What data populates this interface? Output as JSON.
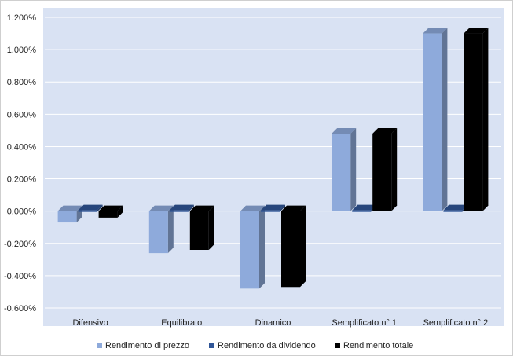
{
  "chart_data": {
    "type": "bar",
    "style": "3d-clustered-column",
    "categories": [
      "Difensivo",
      "Equilibrato",
      "Dinamico",
      "Semplificato n° 1",
      "Semplificato n° 2"
    ],
    "series": [
      {
        "name": "Rendimento di prezzo",
        "values": [
          -0.07,
          -0.26,
          -0.48,
          0.48,
          1.1
        ],
        "color": "#8eaadb"
      },
      {
        "name": "Rendimento da dividendo",
        "values": [
          0.0,
          0.0,
          0.0,
          0.0,
          0.0
        ],
        "color": "#2f5597"
      },
      {
        "name": "Rendimento totale",
        "values": [
          -0.04,
          -0.24,
          -0.47,
          0.48,
          1.1
        ],
        "color": "#000000"
      }
    ],
    "y_ticks": [
      "1.200%",
      "1.000%",
      "0.800%",
      "0.600%",
      "0.400%",
      "0.200%",
      "0.000%",
      "-0.200%",
      "-0.400%",
      "-0.600%"
    ],
    "ylim": [
      -0.6,
      1.2
    ],
    "grid": true,
    "legend_position": "bottom",
    "plot_background": "#d9e2f3"
  }
}
